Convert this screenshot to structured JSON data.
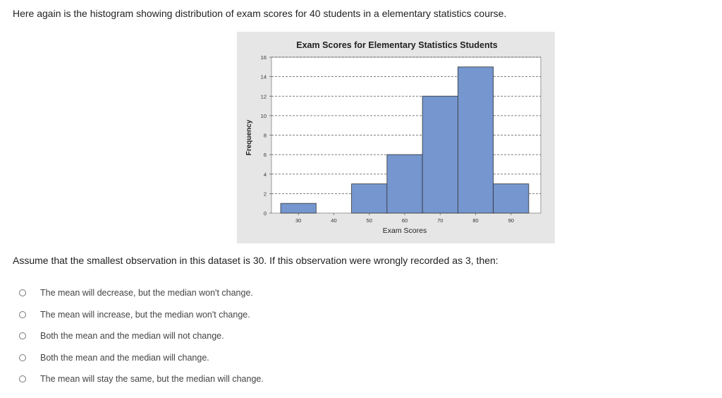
{
  "intro_text": "Here again is the histogram showing distribution of exam scores for 40 students in a elementary statistics course.",
  "question_text": "Assume that the smallest observation in this dataset is 30. If this observation were wrongly recorded as 3, then:",
  "options": [
    {
      "label": "The mean will decrease, but the median won't change."
    },
    {
      "label": "The mean will increase, but the median won't change."
    },
    {
      "label": "Both the mean and the median will not change."
    },
    {
      "label": "Both the mean and the median will change."
    },
    {
      "label": "The mean will stay the same, but the median will change."
    }
  ],
  "colors": {
    "bar_fill": "#7596cf",
    "bar_stroke": "#333333",
    "panel_bg": "#e6e6e6",
    "plot_bg": "#ffffff",
    "grid": "#555555"
  },
  "chart_data": {
    "type": "bar",
    "title": "Exam Scores for Elementary Statistics Students",
    "xlabel": "Exam Scores",
    "ylabel": "Frequency",
    "bin_width": 10,
    "bin_centers": [
      30,
      40,
      50,
      60,
      70,
      80,
      90
    ],
    "values": [
      1,
      0,
      3,
      6,
      12,
      15,
      3
    ],
    "x_ticks": [
      30,
      40,
      50,
      60,
      70,
      80,
      90
    ],
    "y_ticks": [
      0,
      2,
      4,
      6,
      8,
      10,
      12,
      14,
      16
    ],
    "xlim": [
      22.4,
      98.4
    ],
    "ylim": [
      0,
      16
    ],
    "grid": "horizontal dashed"
  }
}
